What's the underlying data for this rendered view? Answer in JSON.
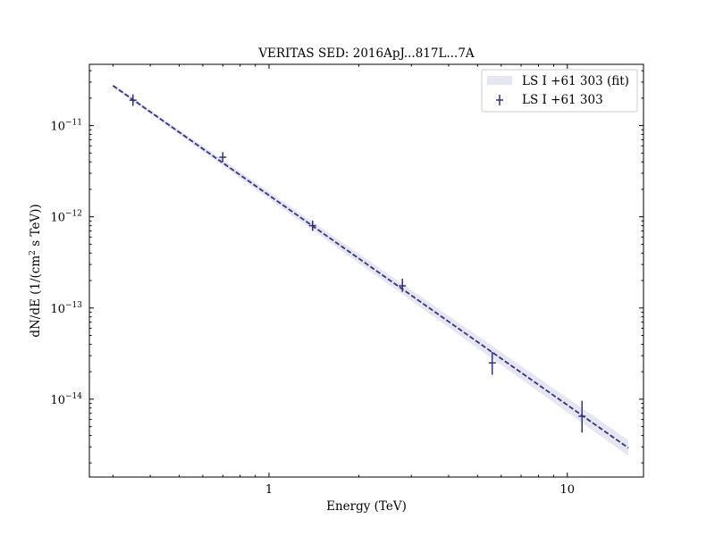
{
  "chart_data": {
    "type": "scatter",
    "title": "VERITAS SED: 2016ApJ...817L...7A",
    "xlabel": "Energy (TeV)",
    "ylabel_parts": {
      "prefix": "dN/dE (1/(cm",
      "sup": "2",
      "suffix": " s TeV))"
    },
    "xscale": "log",
    "yscale": "log",
    "xlim": [
      0.25,
      18
    ],
    "ylim": [
      1.4e-15,
      4.7e-11
    ],
    "xticks": [
      {
        "value": 1,
        "label": "1"
      },
      {
        "value": 10,
        "label": "10"
      }
    ],
    "yticks": [
      {
        "value": 1e-14,
        "base": "10",
        "exp": "−14"
      },
      {
        "value": 1e-13,
        "base": "10",
        "exp": "−13"
      },
      {
        "value": 1e-12,
        "base": "10",
        "exp": "−12"
      },
      {
        "value": 1e-11,
        "base": "10",
        "exp": "−11"
      }
    ],
    "grid": false,
    "legend_position": "top-right",
    "color": "#33337f",
    "band_color": "#e6e6f2",
    "series": [
      {
        "name": "LS I +61 303",
        "kind": "points",
        "points": [
          {
            "x": 0.35,
            "y": 1.9e-11,
            "ylo": 1.65e-11,
            "yhi": 2.2e-11
          },
          {
            "x": 0.7,
            "y": 4.5e-12,
            "ylo": 4e-12,
            "yhi": 5.1e-12
          },
          {
            "x": 1.4,
            "y": 8e-13,
            "ylo": 7e-13,
            "yhi": 9.1e-13
          },
          {
            "x": 2.8,
            "y": 1.75e-13,
            "ylo": 1.5e-13,
            "yhi": 2.1e-13
          },
          {
            "x": 5.6,
            "y": 2.5e-14,
            "ylo": 1.85e-14,
            "yhi": 3.3e-14
          },
          {
            "x": 11.2,
            "y": 6.5e-15,
            "ylo": 4.3e-15,
            "yhi": 9.6e-15
          }
        ]
      },
      {
        "name": "LS I +61 303 (fit)",
        "kind": "powerlaw-fit",
        "x_range": [
          0.3,
          16.0
        ],
        "norm_at_1TeV": 1.72e-12,
        "index": 2.3,
        "band_factor_low": 1.04,
        "band_factor_high": 1.22
      }
    ]
  }
}
